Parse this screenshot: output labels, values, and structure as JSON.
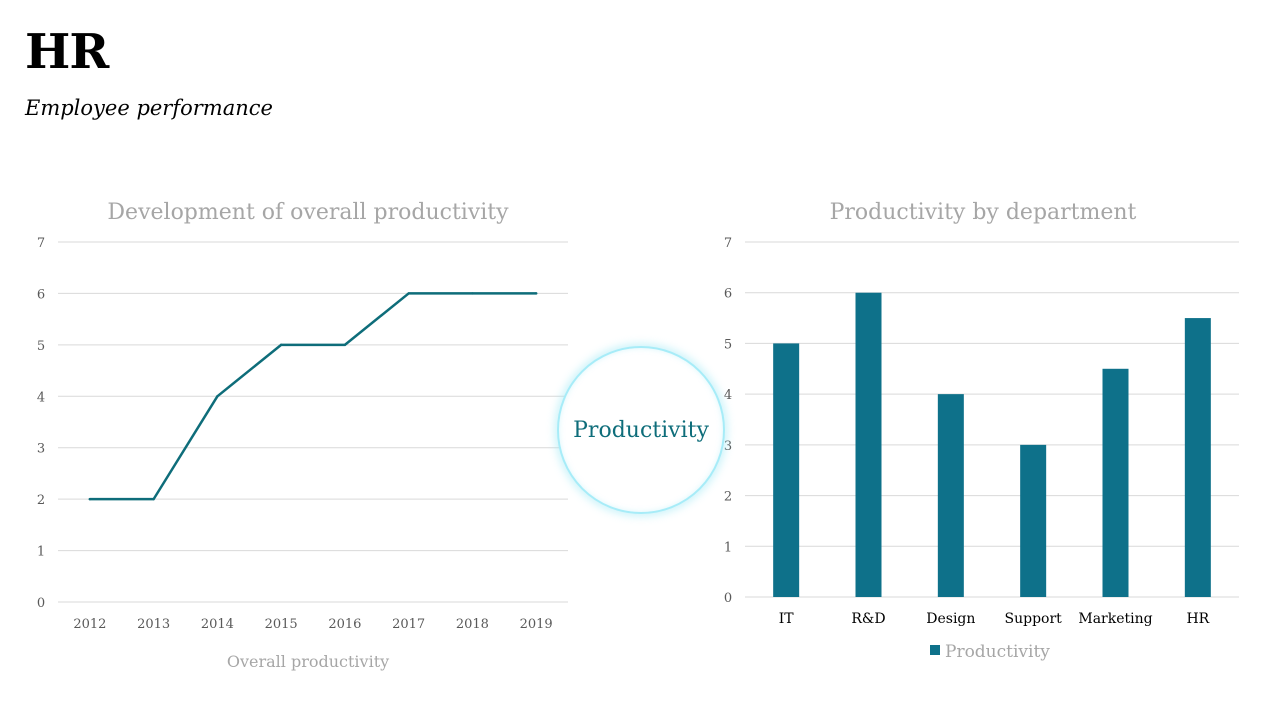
{
  "header": {
    "title": "HR",
    "subtitle": "Employee performance"
  },
  "badge": {
    "label": "Productivity"
  },
  "colors": {
    "series": "#0e6d7a",
    "bar": "#0e718a",
    "grid": "#d9d9d9",
    "muted_text": "#a6a6a6",
    "badge_ring": "#a7ecf8"
  },
  "chart_data": [
    {
      "type": "line",
      "title": "Development of overall productivity",
      "categories": [
        "2012",
        "2013",
        "2014",
        "2015",
        "2016",
        "2017",
        "2018",
        "2019"
      ],
      "series": [
        {
          "name": "Overall productivity",
          "values": [
            2,
            2,
            4,
            5,
            5,
            6,
            6,
            6
          ]
        }
      ],
      "ylim": [
        0,
        7
      ],
      "yticks": [
        "0",
        "1",
        "2",
        "3",
        "4",
        "5",
        "6",
        "7"
      ],
      "grid": true,
      "legend": "bottom"
    },
    {
      "type": "bar",
      "title": "Productivity by department",
      "categories": [
        "IT",
        "R&D",
        "Design",
        "Support",
        "Marketing",
        "HR"
      ],
      "series": [
        {
          "name": "Productivity",
          "values": [
            5,
            6,
            4,
            3,
            4.5,
            5.5
          ]
        }
      ],
      "ylim": [
        0,
        7
      ],
      "yticks": [
        "0",
        "1",
        "2",
        "3",
        "4",
        "5",
        "6",
        "7"
      ],
      "grid": true,
      "legend": "bottom"
    }
  ]
}
